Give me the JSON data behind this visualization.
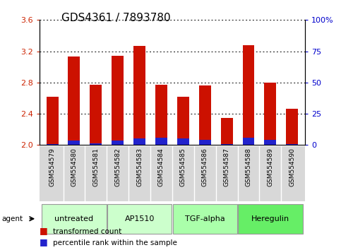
{
  "title": "GDS4361 / 7893780",
  "samples": [
    "GSM554579",
    "GSM554580",
    "GSM554581",
    "GSM554582",
    "GSM554583",
    "GSM554584",
    "GSM554585",
    "GSM554586",
    "GSM554587",
    "GSM554588",
    "GSM554589",
    "GSM554590"
  ],
  "red_values": [
    2.62,
    3.13,
    2.77,
    3.14,
    3.27,
    2.77,
    2.62,
    2.76,
    2.35,
    3.28,
    2.8,
    2.46
  ],
  "blue_values": [
    0.015,
    0.055,
    0.025,
    0.055,
    0.085,
    0.095,
    0.085,
    0.065,
    0.01,
    0.095,
    0.065,
    0.01
  ],
  "ymin": 2.0,
  "ymax": 3.6,
  "yticks_left": [
    2.0,
    2.4,
    2.8,
    3.2,
    3.6
  ],
  "yticks_right": [
    0,
    25,
    50,
    75,
    100
  ],
  "ytick_labels_right": [
    "0",
    "25",
    "50",
    "75",
    "100%"
  ],
  "agent_groups": [
    {
      "label": "untreated",
      "start": 0,
      "end": 2,
      "color": "#ccffcc"
    },
    {
      "label": "AP1510",
      "start": 3,
      "end": 5,
      "color": "#ccffcc"
    },
    {
      "label": "TGF-alpha",
      "start": 6,
      "end": 8,
      "color": "#aaffaa"
    },
    {
      "label": "Heregulin",
      "start": 9,
      "end": 11,
      "color": "#66ee66"
    }
  ],
  "bar_width": 0.55,
  "red_color": "#cc1100",
  "blue_color": "#2222cc",
  "tick_label_color_left": "#cc2200",
  "tick_label_color_right": "#0000cc",
  "title_fontsize": 11,
  "tick_fontsize": 8,
  "label_fontsize": 7.5
}
